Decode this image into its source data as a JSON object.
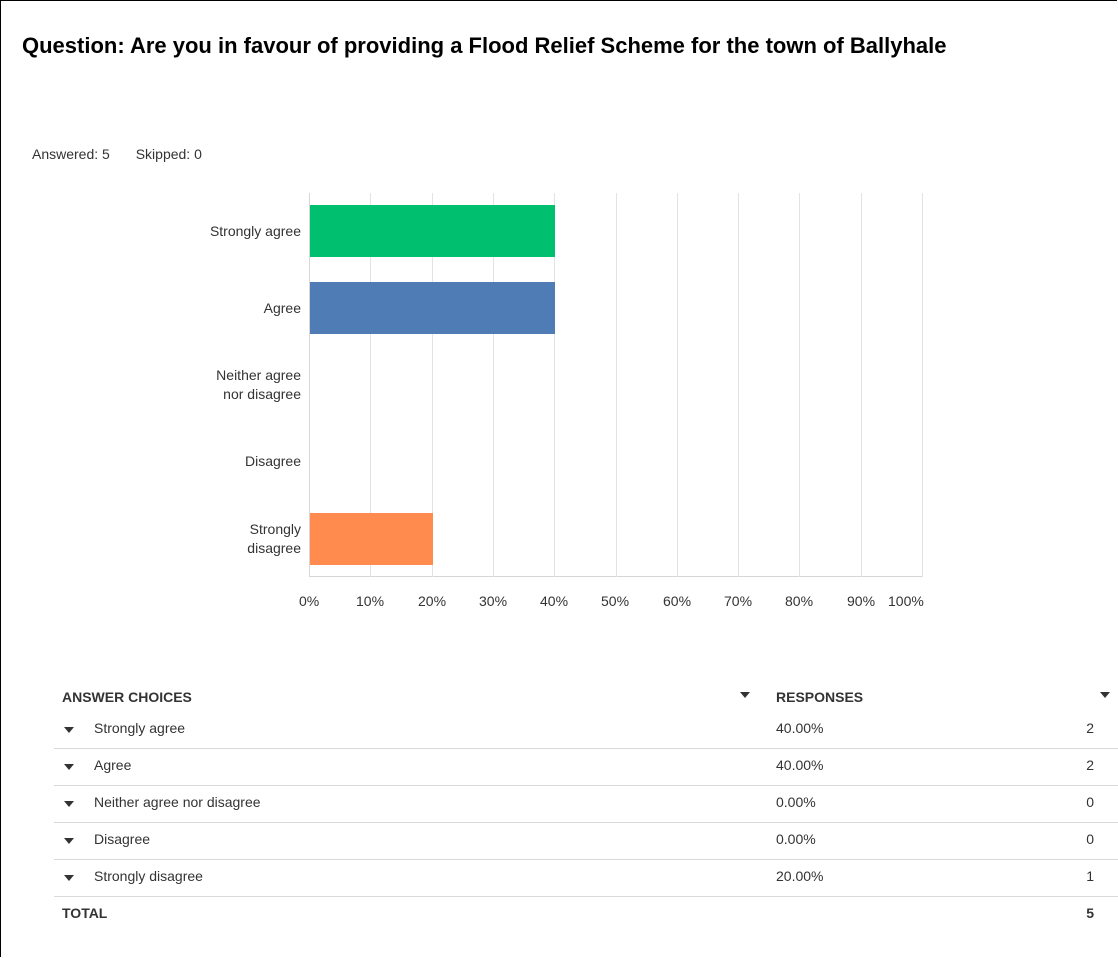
{
  "question": "Question: Are you in favour of providing a Flood Relief Scheme for the town of Ballyhale",
  "stats": {
    "answered": "Answered: 5",
    "skipped": "Skipped: 0"
  },
  "chart_data": {
    "type": "bar",
    "orientation": "horizontal",
    "categories": [
      "Strongly agree",
      "Agree",
      "Neither agree nor disagree",
      "Disagree",
      "Strongly disagree"
    ],
    "category_labels": [
      [
        "Strongly agree"
      ],
      [
        "Agree"
      ],
      [
        "Neither agree",
        "nor disagree"
      ],
      [
        "Disagree"
      ],
      [
        "Strongly",
        "disagree"
      ]
    ],
    "values": [
      40,
      40,
      0,
      0,
      20
    ],
    "colors": [
      "#00bf6f",
      "#507cb6",
      "#f9be00",
      "#6bc8cd",
      "#ff8b4f"
    ],
    "xlim": [
      0,
      100
    ],
    "xticks": [
      "0%",
      "10%",
      "20%",
      "30%",
      "40%",
      "50%",
      "60%",
      "70%",
      "80%",
      "90%",
      "100%"
    ],
    "grid": true
  },
  "table": {
    "header_choice": "ANSWER CHOICES",
    "header_responses": "RESPONSES",
    "rows": [
      {
        "label": "Strongly agree",
        "percent": "40.00%",
        "count": "2"
      },
      {
        "label": "Agree",
        "percent": "40.00%",
        "count": "2"
      },
      {
        "label": "Neither agree nor disagree",
        "percent": "0.00%",
        "count": "0"
      },
      {
        "label": "Disagree",
        "percent": "0.00%",
        "count": "0"
      },
      {
        "label": "Strongly disagree",
        "percent": "20.00%",
        "count": "1"
      }
    ],
    "total_label": "TOTAL",
    "total_count": "5"
  }
}
